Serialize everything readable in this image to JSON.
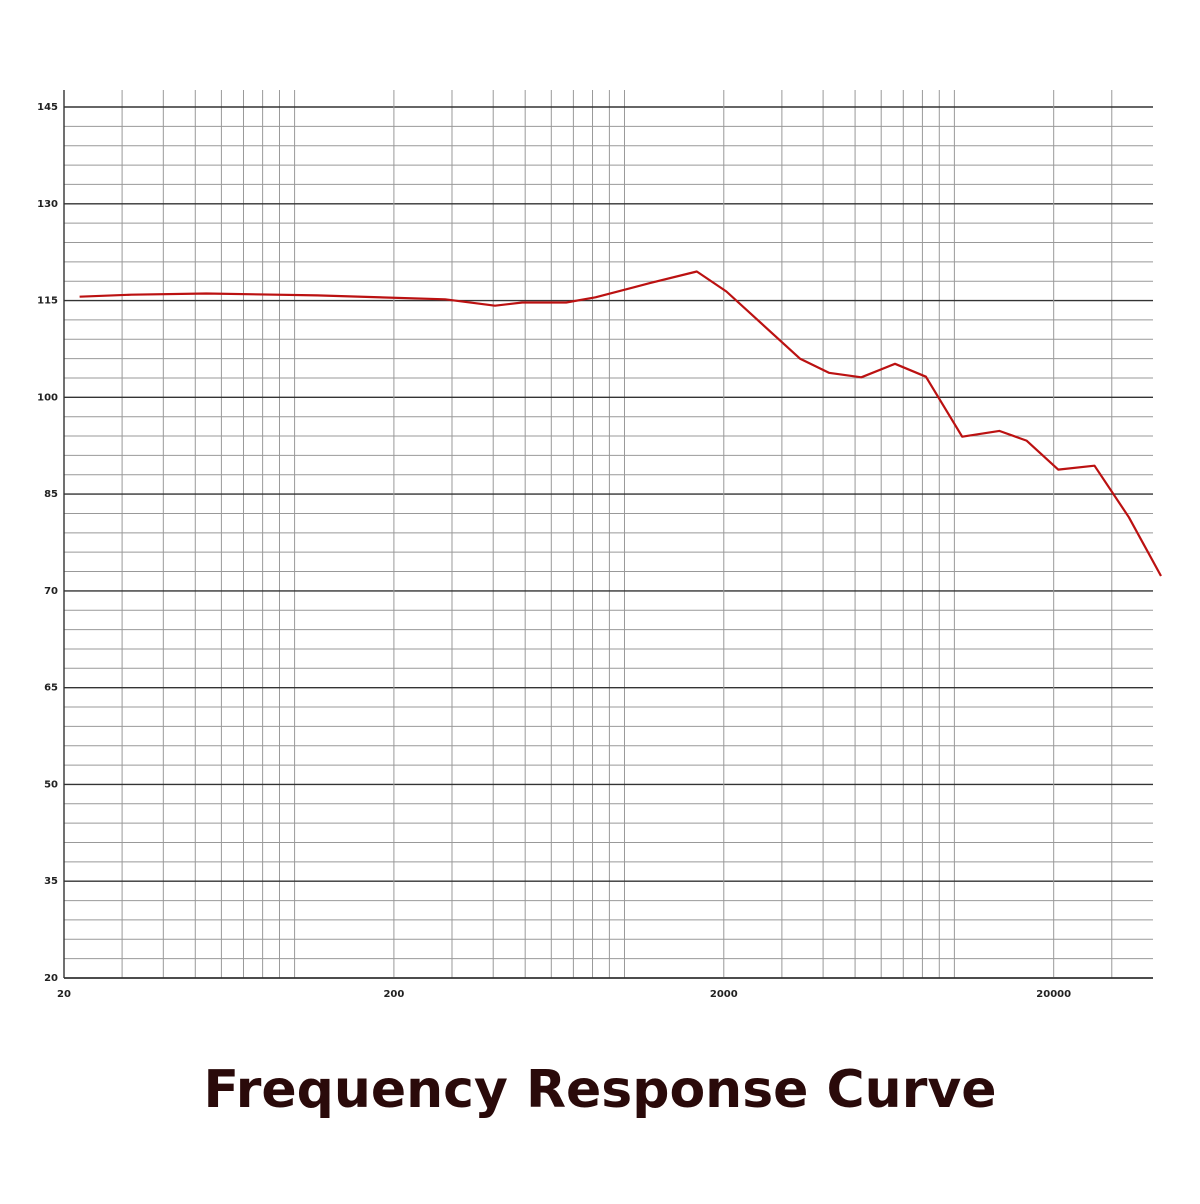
{
  "chart_data": {
    "type": "line",
    "title": "Frequency Response Curve",
    "x": [
      22.3,
      32,
      54,
      117,
      286,
      405,
      490,
      666,
      817,
      1194,
      1656,
      2036,
      3402,
      4166,
      5223,
      6608,
      8200,
      10560,
      13680,
      16540,
      20640,
      26600,
      33800,
      42300
    ],
    "values": [
      115.6,
      115.9,
      116.1,
      115.8,
      115.2,
      114.2,
      114.7,
      114.7,
      115.5,
      117.7,
      119.5,
      116.4,
      106.0,
      103.8,
      103.1,
      105.2,
      103.2,
      93.9,
      94.8,
      93.3,
      88.8,
      89.4,
      81.4,
      72.3
    ],
    "color": "#bb1111",
    "xscale": "log",
    "xlim": [
      20,
      40000
    ],
    "xticks": [
      20,
      200,
      2000,
      20000
    ],
    "ylim": [
      20,
      145
    ],
    "yticks": [
      20,
      35,
      50,
      65,
      70,
      85,
      100,
      115,
      130,
      145
    ],
    "grid": true
  }
}
